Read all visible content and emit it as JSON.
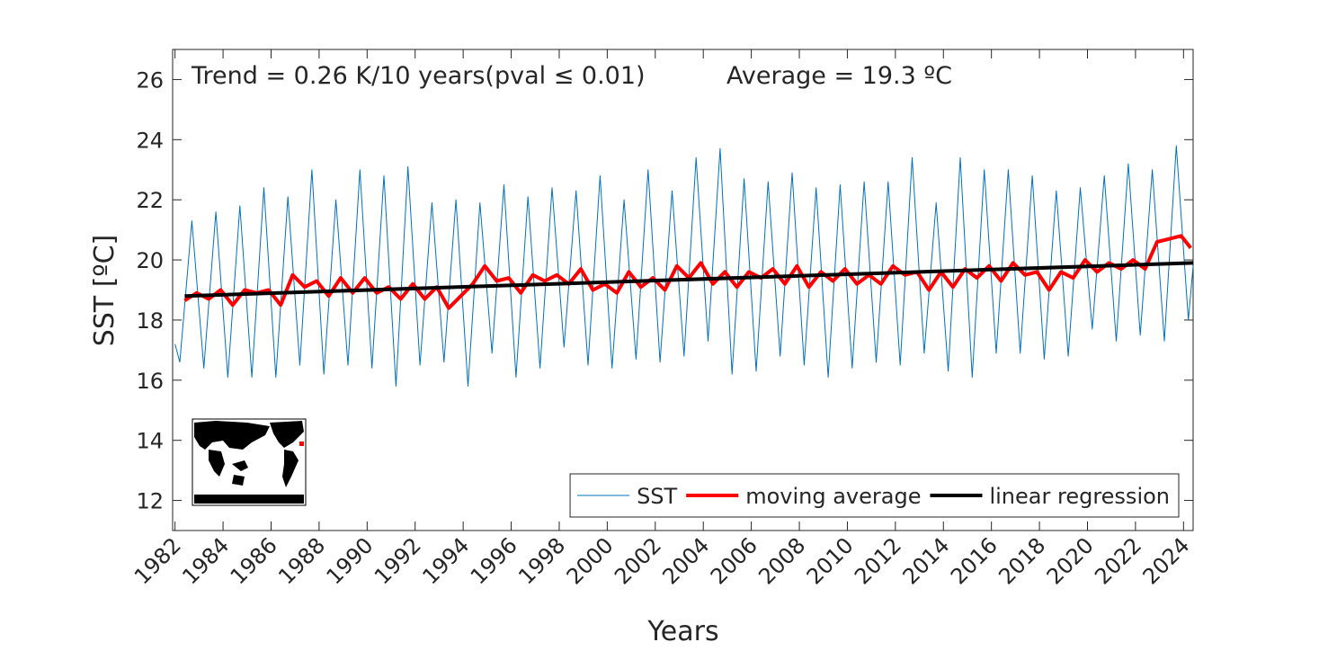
{
  "chart_data": {
    "type": "line",
    "xlabel": "Years",
    "ylabel": "SST [ºC]",
    "annotations": [
      "Trend = 0.26 K/10 years(pval ≤ 0.01)",
      "Average = 19.3 ºC"
    ],
    "xlim": [
      1981.9,
      2024.4
    ],
    "ylim": [
      11,
      27
    ],
    "xticks": [
      1982,
      1984,
      1986,
      1988,
      1990,
      1992,
      1994,
      1996,
      1998,
      2000,
      2002,
      2004,
      2006,
      2008,
      2010,
      2012,
      2014,
      2016,
      2018,
      2020,
      2022,
      2024
    ],
    "yticks": [
      12,
      14,
      16,
      18,
      20,
      22,
      24,
      26
    ],
    "legend": "lower right",
    "series": [
      {
        "name": "SST",
        "color": "#0072bd",
        "width": 1,
        "x": [
          1982.0,
          1982.2,
          1982.7,
          1983.2,
          1983.7,
          1984.2,
          1984.7,
          1985.2,
          1985.7,
          1986.2,
          1986.7,
          1987.2,
          1987.7,
          1988.2,
          1988.7,
          1989.2,
          1989.7,
          1990.2,
          1990.7,
          1991.2,
          1991.7,
          1992.2,
          1992.7,
          1993.2,
          1993.7,
          1994.2,
          1994.7,
          1995.2,
          1995.7,
          1996.2,
          1996.7,
          1997.2,
          1997.7,
          1998.2,
          1998.7,
          1999.2,
          1999.7,
          2000.2,
          2000.7,
          2001.2,
          2001.7,
          2002.2,
          2002.7,
          2003.2,
          2003.7,
          2004.2,
          2004.7,
          2005.2,
          2005.7,
          2006.2,
          2006.7,
          2007.2,
          2007.7,
          2008.2,
          2008.7,
          2009.2,
          2009.7,
          2010.2,
          2010.7,
          2011.2,
          2011.7,
          2012.2,
          2012.7,
          2013.2,
          2013.7,
          2014.2,
          2014.7,
          2015.2,
          2015.7,
          2016.2,
          2016.7,
          2017.2,
          2017.7,
          2018.2,
          2018.7,
          2019.2,
          2019.7,
          2020.2,
          2020.7,
          2021.2,
          2021.7,
          2022.2,
          2022.7,
          2023.2,
          2023.7,
          2024.2,
          2024.4
        ],
        "values": [
          17.2,
          16.6,
          21.3,
          16.4,
          21.6,
          16.1,
          21.8,
          16.1,
          22.4,
          16.1,
          22.1,
          16.5,
          23.0,
          16.2,
          22.0,
          16.5,
          23.0,
          16.4,
          22.8,
          15.8,
          23.1,
          16.5,
          21.9,
          16.6,
          22.0,
          15.8,
          21.9,
          16.9,
          22.5,
          16.1,
          22.1,
          16.4,
          22.4,
          17.1,
          22.3,
          16.5,
          22.8,
          16.4,
          22.0,
          16.7,
          23.0,
          16.6,
          22.3,
          16.8,
          23.4,
          17.3,
          23.7,
          16.2,
          22.7,
          16.3,
          22.6,
          16.8,
          22.9,
          16.5,
          22.4,
          16.1,
          22.5,
          16.4,
          22.6,
          16.6,
          22.6,
          16.5,
          23.4,
          16.9,
          21.9,
          16.3,
          23.4,
          16.1,
          23.0,
          16.9,
          23.0,
          16.9,
          22.8,
          16.7,
          22.3,
          16.8,
          22.4,
          17.7,
          22.8,
          17.3,
          23.2,
          17.5,
          23.0,
          17.3,
          23.8,
          18.0,
          19.8
        ]
      },
      {
        "name": "moving average",
        "color": "#ff0000",
        "width": 4,
        "x": [
          1982.4,
          1982.9,
          1983.4,
          1983.9,
          1984.4,
          1984.9,
          1985.4,
          1985.9,
          1986.4,
          1986.9,
          1987.4,
          1987.9,
          1988.4,
          1988.9,
          1989.4,
          1989.9,
          1990.4,
          1990.9,
          1991.4,
          1991.9,
          1992.4,
          1992.9,
          1993.4,
          1993.9,
          1994.4,
          1994.9,
          1995.4,
          1995.9,
          1996.4,
          1996.9,
          1997.4,
          1997.9,
          1998.4,
          1998.9,
          1999.4,
          1999.9,
          2000.4,
          2000.9,
          2001.4,
          2001.9,
          2002.4,
          2002.9,
          2003.4,
          2003.9,
          2004.4,
          2004.9,
          2005.4,
          2005.9,
          2006.4,
          2006.9,
          2007.4,
          2007.9,
          2008.4,
          2008.9,
          2009.4,
          2009.9,
          2010.4,
          2010.9,
          2011.4,
          2011.9,
          2012.4,
          2012.9,
          2013.4,
          2013.9,
          2014.4,
          2014.9,
          2015.4,
          2015.9,
          2016.4,
          2016.9,
          2017.4,
          2017.9,
          2018.4,
          2018.9,
          2019.4,
          2019.9,
          2020.4,
          2020.9,
          2021.4,
          2021.9,
          2022.4,
          2022.9,
          2023.4,
          2023.9,
          2024.3
        ],
        "values": [
          18.65,
          18.9,
          18.7,
          19.0,
          18.5,
          19.0,
          18.9,
          19.0,
          18.5,
          19.5,
          19.1,
          19.3,
          18.8,
          19.4,
          18.9,
          19.4,
          18.9,
          19.1,
          18.7,
          19.2,
          18.7,
          19.1,
          18.4,
          18.8,
          19.2,
          19.8,
          19.3,
          19.4,
          18.9,
          19.5,
          19.3,
          19.5,
          19.2,
          19.7,
          19.0,
          19.2,
          18.9,
          19.6,
          19.1,
          19.4,
          19.0,
          19.8,
          19.4,
          19.9,
          19.2,
          19.6,
          19.1,
          19.6,
          19.4,
          19.7,
          19.2,
          19.8,
          19.1,
          19.6,
          19.3,
          19.7,
          19.2,
          19.5,
          19.2,
          19.8,
          19.5,
          19.6,
          19.0,
          19.6,
          19.1,
          19.7,
          19.4,
          19.8,
          19.3,
          19.9,
          19.5,
          19.6,
          19.0,
          19.6,
          19.4,
          20.0,
          19.6,
          19.9,
          19.7,
          20.0,
          19.7,
          20.6,
          20.7,
          20.8,
          20.4
        ]
      },
      {
        "name": "linear regression",
        "color": "#000000",
        "width": 4,
        "x": [
          1982.4,
          2024.4
        ],
        "values": [
          18.8,
          19.9
        ]
      }
    ]
  }
}
